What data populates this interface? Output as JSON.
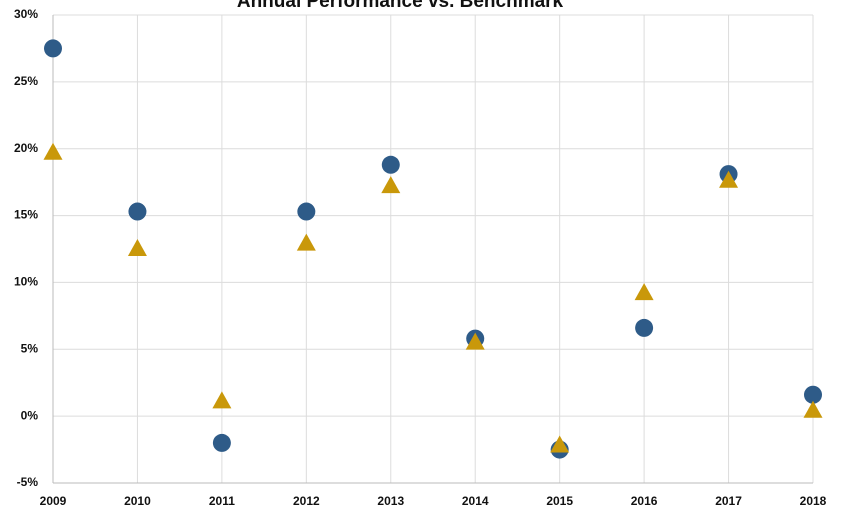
{
  "chart_data": {
    "type": "scatter",
    "title": "Annual Performance vs. Benchmark",
    "x": [
      2009,
      2010,
      2011,
      2012,
      2013,
      2014,
      2015,
      2016,
      2017,
      2018
    ],
    "series": [
      {
        "color": "#2e5b88",
        "marker": "circle",
        "values": [
          27.5,
          15.3,
          -2.0,
          15.3,
          18.8,
          5.8,
          -2.5,
          6.6,
          18.1,
          1.6
        ]
      },
      {
        "color": "#c9980a",
        "marker": "triangle",
        "values": [
          19.7,
          12.5,
          1.1,
          12.9,
          17.2,
          5.5,
          -2.2,
          9.2,
          17.6,
          0.4
        ]
      }
    ],
    "xlim": [
      2009,
      2018
    ],
    "xticks": [
      2009,
      2010,
      2011,
      2012,
      2013,
      2014,
      2015,
      2016,
      2017,
      2018
    ],
    "ylim": [
      -5,
      30
    ],
    "yticks": [
      {
        "value": -5,
        "label": "-5%"
      },
      {
        "value": 0,
        "label": "0%"
      },
      {
        "value": 5,
        "label": "5%"
      },
      {
        "value": 10,
        "label": "10%"
      },
      {
        "value": 15,
        "label": "15%"
      },
      {
        "value": 20,
        "label": "20%"
      },
      {
        "value": 25,
        "label": "25%"
      },
      {
        "value": 30,
        "label": "30%"
      }
    ],
    "grid": true
  }
}
